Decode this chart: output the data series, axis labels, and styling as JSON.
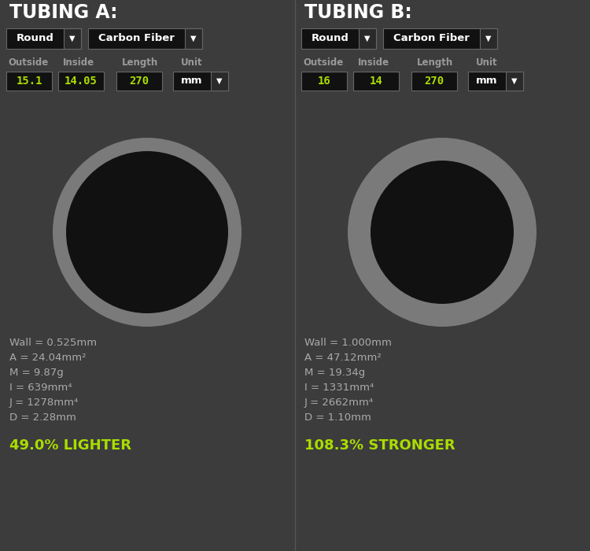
{
  "bg_color": "#3c3c3c",
  "white": "#ffffff",
  "green": "#aadd00",
  "gray_text": "#aaaaaa",
  "light_gray": "#999999",
  "ring_gray": "#7a7a7a",
  "ring_inner": "#111111",
  "dropdown_bg": "#111111",
  "dropdown_arrow_bg": "#2a2a2a",
  "input_bg": "#111111",
  "border_color": "#666666",
  "tubing_a": {
    "title": "TUBING A:",
    "shape": "Round",
    "material": "Carbon Fiber",
    "outside": "15.1",
    "inside": "14.05",
    "length": "270",
    "unit": "mm",
    "wall": "Wall = 0.525mm",
    "area": "A = 24.04mm²",
    "mass": "M = 9.87g",
    "inertia_i": "I = 639mm⁴",
    "inertia_j": "J = 1278mm⁴",
    "deflection": "D = 2.28mm",
    "highlight": "49.0% LIGHTER",
    "ring_outer_r": 120,
    "ring_inner_r": 103
  },
  "tubing_b": {
    "title": "TUBING B:",
    "shape": "Round",
    "material": "Carbon Fiber",
    "outside": "16",
    "inside": "14",
    "length": "270",
    "unit": "mm",
    "wall": "Wall = 1.000mm",
    "area": "A = 47.12mm²",
    "mass": "M = 19.34g",
    "inertia_i": "I = 1331mm⁴",
    "inertia_j": "J = 2662mm⁴",
    "deflection": "D = 1.10mm",
    "highlight": "108.3% STRONGER",
    "ring_outer_r": 120,
    "ring_inner_r": 91
  }
}
